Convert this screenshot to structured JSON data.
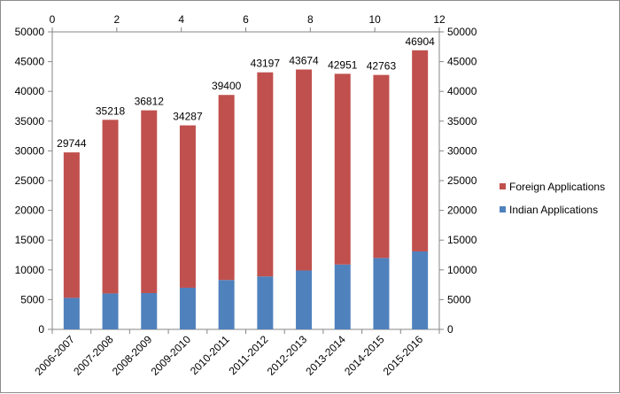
{
  "chart_data": {
    "type": "bar",
    "stacked": true,
    "categories": [
      "2006-2007",
      "2007-2008",
      "2008-2009",
      "2009-2010",
      "2010-2011",
      "2011-2012",
      "2012-2013",
      "2013-2014",
      "2014-2015",
      "2015-2016"
    ],
    "series": [
      {
        "name": "Indian Applications",
        "color": "#4f81bd",
        "values": [
          5300,
          6040,
          6100,
          7000,
          8300,
          8900,
          9900,
          10900,
          12000,
          13100
        ]
      },
      {
        "name": "Foreign Applications",
        "color": "#c0504d",
        "values": [
          24444,
          29178,
          30712,
          27287,
          31100,
          34297,
          33774,
          32051,
          30763,
          33804
        ]
      }
    ],
    "totals": [
      29744,
      35218,
      36812,
      34287,
      39400,
      43197,
      43674,
      42951,
      42763,
      46904
    ],
    "total_labels": [
      "29744",
      "35218",
      "36812",
      "34287",
      "39400",
      "43197",
      "43674",
      "42951",
      "42763",
      "46904"
    ],
    "title": "",
    "ylim": [
      0,
      50000
    ],
    "y_ticks": [
      "0",
      "5000",
      "10000",
      "15000",
      "20000",
      "25000",
      "30000",
      "35000",
      "40000",
      "45000",
      "50000"
    ],
    "secondary_ylim": [
      0,
      50000
    ],
    "secondary_y_ticks": [
      "0",
      "5000",
      "10000",
      "15000",
      "20000",
      "25000",
      "30000",
      "35000",
      "40000",
      "45000",
      "50000"
    ],
    "secondary_xlim": [
      0,
      12
    ],
    "secondary_x_ticks": [
      "0",
      "2",
      "4",
      "6",
      "8",
      "10",
      "12"
    ],
    "legend": {
      "position": "right",
      "order": [
        "Foreign Applications",
        "Indian Applications"
      ]
    },
    "grid": false
  }
}
